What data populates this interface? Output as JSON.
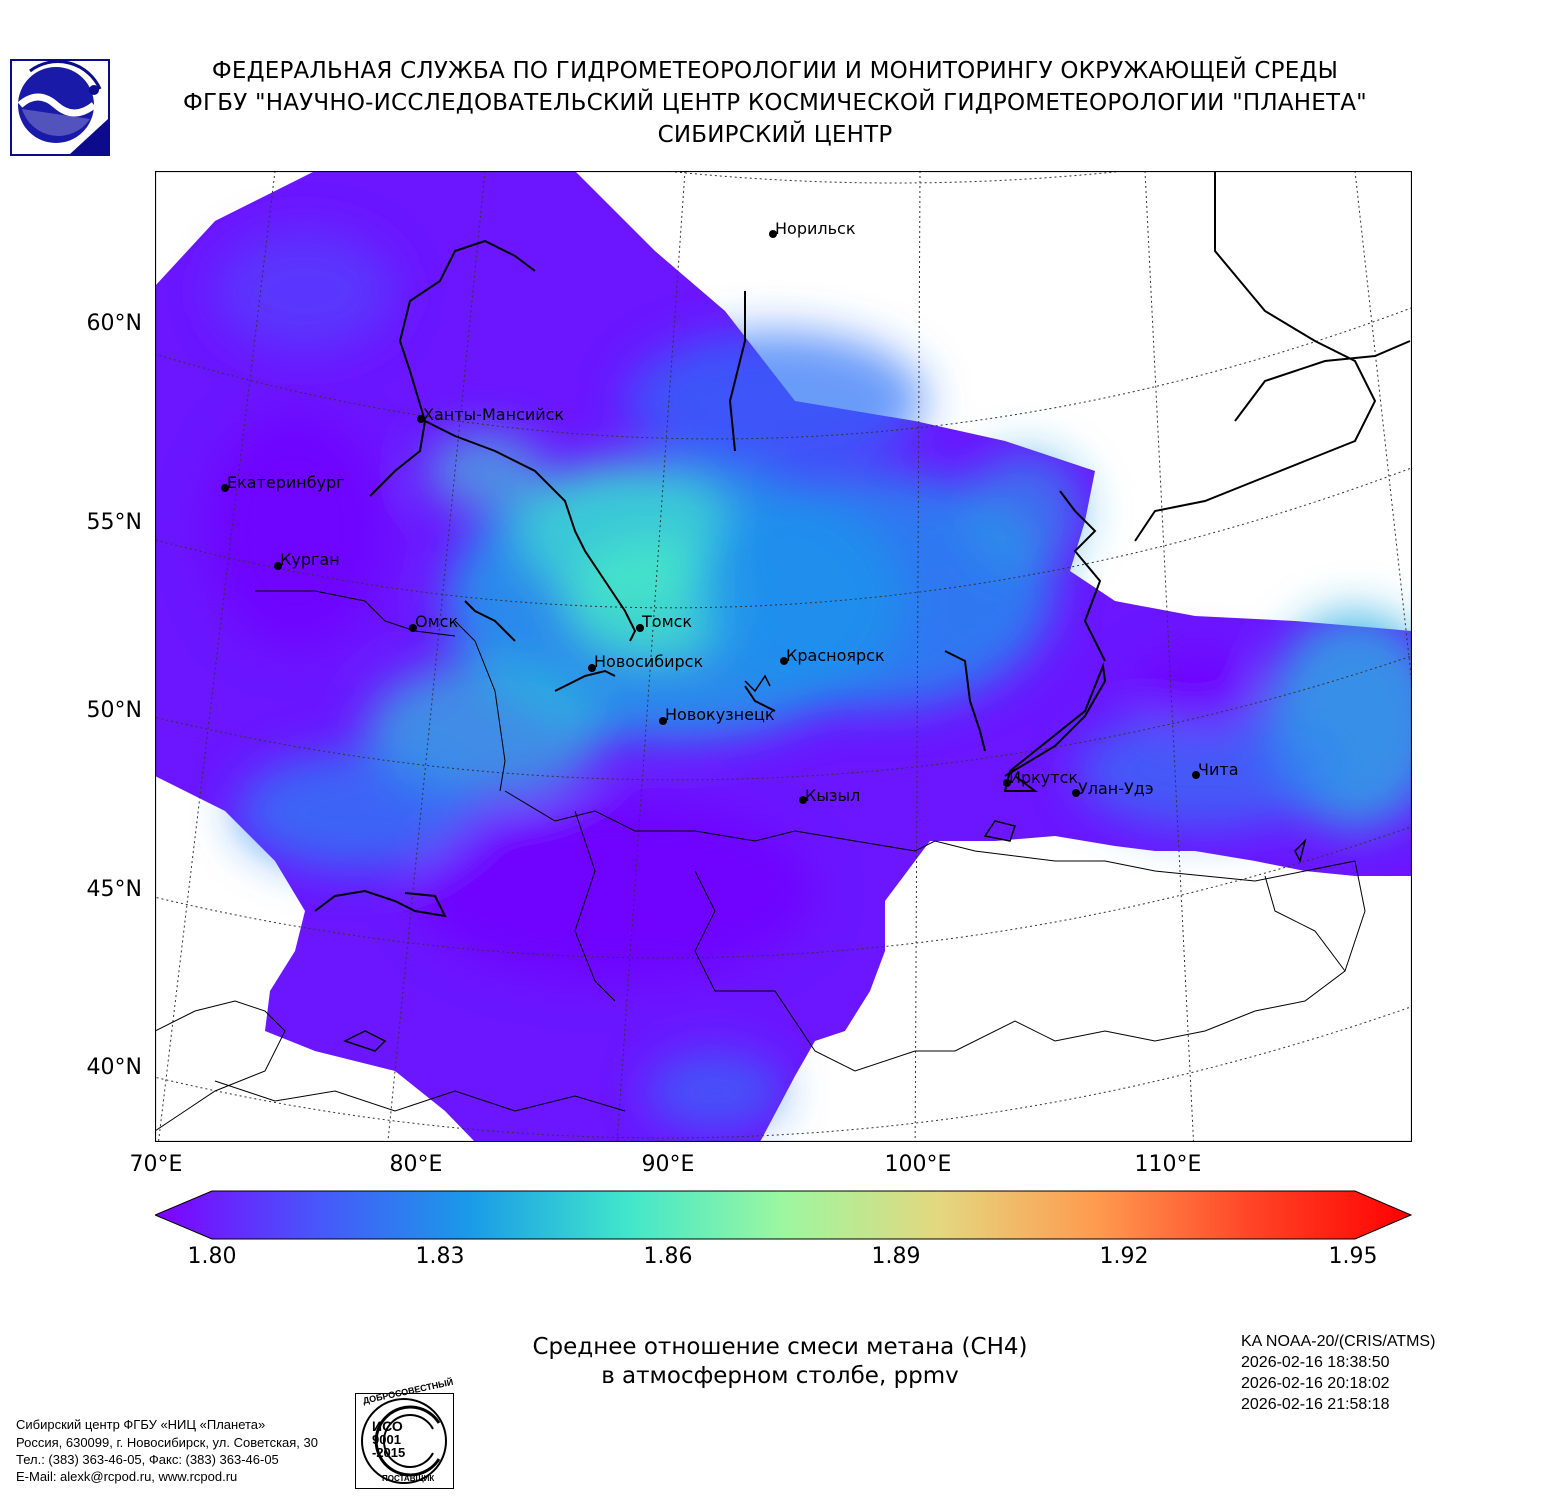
{
  "header": {
    "line1": "ФЕДЕРАЛЬНАЯ СЛУЖБА ПО ГИДРОМЕТЕОРОЛОГИИ И МОНИТОРИНГУ ОКРУЖАЮЩЕЙ СРЕДЫ",
    "line2": "ФГБУ \"НАУЧНО-ИССЛЕДОВАТЕЛЬСКИЙ ЦЕНТР КОСМИЧЕСКОЙ ГИДРОМЕТЕОРОЛОГИИ \"ПЛАНЕТА\"",
    "line3": "СИБИРСКИЙ ЦЕНТР"
  },
  "map": {
    "lat_labels": [
      "60°N",
      "55°N",
      "50°N",
      "45°N",
      "40°N"
    ],
    "lon_labels": [
      "70°E",
      "80°E",
      "90°E",
      "100°E",
      "110°E"
    ],
    "cities": [
      {
        "name": "Норильск"
      },
      {
        "name": "Ханты-Мансийск"
      },
      {
        "name": "Екатеринбург"
      },
      {
        "name": "Курган"
      },
      {
        "name": "Омск"
      },
      {
        "name": "Томск"
      },
      {
        "name": "Новосибирск"
      },
      {
        "name": "Красноярск"
      },
      {
        "name": "Новокузнецк"
      },
      {
        "name": "Кызыл"
      },
      {
        "name": "Иркутск"
      },
      {
        "name": "Улан-Удэ"
      },
      {
        "name": "Чита"
      }
    ]
  },
  "colorbar": {
    "min": 1.8,
    "max": 1.95,
    "tick_labels": [
      "1.80",
      "1.83",
      "1.86",
      "1.89",
      "1.92",
      "1.95"
    ],
    "colors": [
      "#7f00ff",
      "#4a54fb",
      "#1a9ae8",
      "#40e6cb",
      "#9cf7a0",
      "#e4d77f",
      "#ff9a4f",
      "#ff4326",
      "#ff0000"
    ]
  },
  "caption": {
    "line1": "Среднее отношение смеси метана (CH4)",
    "line2": "в атмосферном столбе, ppmv"
  },
  "satellite": {
    "line1": "KA NOAA-20/(CRIS/ATMS)",
    "line2": "2026-02-16 18:38:50",
    "line3": "2026-02-16 20:18:02",
    "line4": "2026-02-16 21:58:18"
  },
  "footer": {
    "line1": "Сибирский центр ФГБУ «НИЦ «Планета»",
    "line2": "Россия, 630099, г. Новосибирск, ул. Советская, 30",
    "line3": "Тел.: (383) 363-46-05, Факс: (383) 363-46-05",
    "line4": "E-Mail: alexk@rcpod.ru, www.rcpod.ru"
  },
  "iso_stamp": {
    "top": "ДОБРОСОВЕСТНЫЙ",
    "code": "ИСО",
    "num1": "9001",
    "num2": "-2015",
    "bottom": "ПОСТАВЩИК"
  },
  "logo_icon": "planeta-logo-icon"
}
